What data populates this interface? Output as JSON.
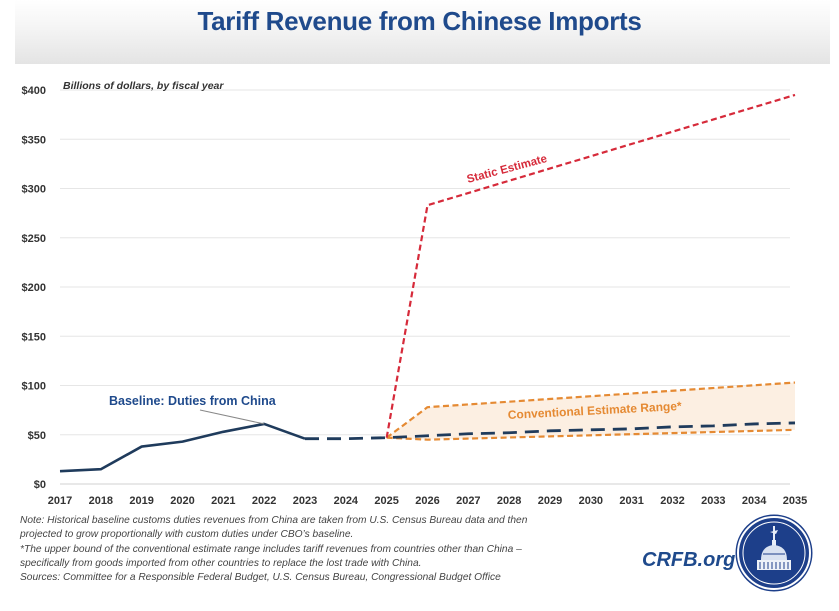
{
  "chart_data": {
    "type": "line",
    "title": "Tariff Revenue from Chinese Imports",
    "subtitle": "Billions of dollars, by fiscal year",
    "xlabel": "",
    "ylabel": "",
    "x_ticks": [
      "2017",
      "2018",
      "2019",
      "2020",
      "2021",
      "2022",
      "2023",
      "2024",
      "2025",
      "2026",
      "2027",
      "2028",
      "2029",
      "2030",
      "2031",
      "2032",
      "2033",
      "2034",
      "2035"
    ],
    "y_ticks": [
      "$0",
      "$50",
      "$100",
      "$150",
      "$200",
      "$250",
      "$300",
      "$350",
      "$400"
    ],
    "ylim": [
      0,
      400
    ],
    "xlim": [
      2017,
      2035
    ],
    "grid": "horizontal",
    "series": [
      {
        "name": "Baseline: Duties from China (historical)",
        "style": "solid",
        "color": "#1f3b5c",
        "x": [
          2017,
          2018,
          2019,
          2020,
          2021,
          2022,
          2023
        ],
        "values": [
          13,
          15,
          38,
          43,
          53,
          61,
          46
        ]
      },
      {
        "name": "Baseline: Duties from China (projected)",
        "style": "dashed",
        "color": "#1f3b5c",
        "x": [
          2023,
          2024,
          2025,
          2026,
          2027,
          2028,
          2029,
          2030,
          2031,
          2032,
          2033,
          2034,
          2035
        ],
        "values": [
          46,
          46,
          47,
          49,
          51,
          52,
          54,
          55,
          56,
          58,
          59,
          61,
          62
        ]
      },
      {
        "name": "Static Estimate",
        "style": "dashed",
        "color": "#d62a3a",
        "x": [
          2025,
          2026,
          2035
        ],
        "values": [
          47,
          283,
          395
        ]
      },
      {
        "name": "Conventional Estimate Range* (upper)",
        "style": "dashed",
        "color": "#e58a33",
        "x": [
          2025,
          2026,
          2035
        ],
        "values": [
          47,
          78,
          103
        ]
      },
      {
        "name": "Conventional Estimate Range* (lower)",
        "style": "dashed",
        "color": "#e58a33",
        "x": [
          2025,
          2026,
          2035
        ],
        "values": [
          47,
          45,
          55
        ]
      }
    ],
    "annotations": [
      {
        "text": "Baseline: Duties from China",
        "color": "#1f4a8c",
        "points_to": [
          2022,
          61
        ]
      },
      {
        "text": "Static Estimate",
        "color": "#d62a3a"
      },
      {
        "text": "Conventional Estimate Range*",
        "color": "#e58a33"
      }
    ],
    "range_fill_color": "#fcefe2"
  },
  "notes": [
    "Note: Historical baseline customs duties revenues from China are taken from U.S. Census Bureau data and then",
    "projected to grow proportionally with custom duties under CBO’s baseline.",
    "*The upper bound of the conventional estimate range includes tariff revenues from countries other than China –",
    "specifically from goods imported from other countries to replace the lost trade with China.",
    "Sources: Committee for a Responsible Federal Budget, U.S. Census Bureau, Congressional Budget Office"
  ],
  "brand": {
    "text": "CRFB.org",
    "logo": "capitol-dome-logo-icon"
  }
}
